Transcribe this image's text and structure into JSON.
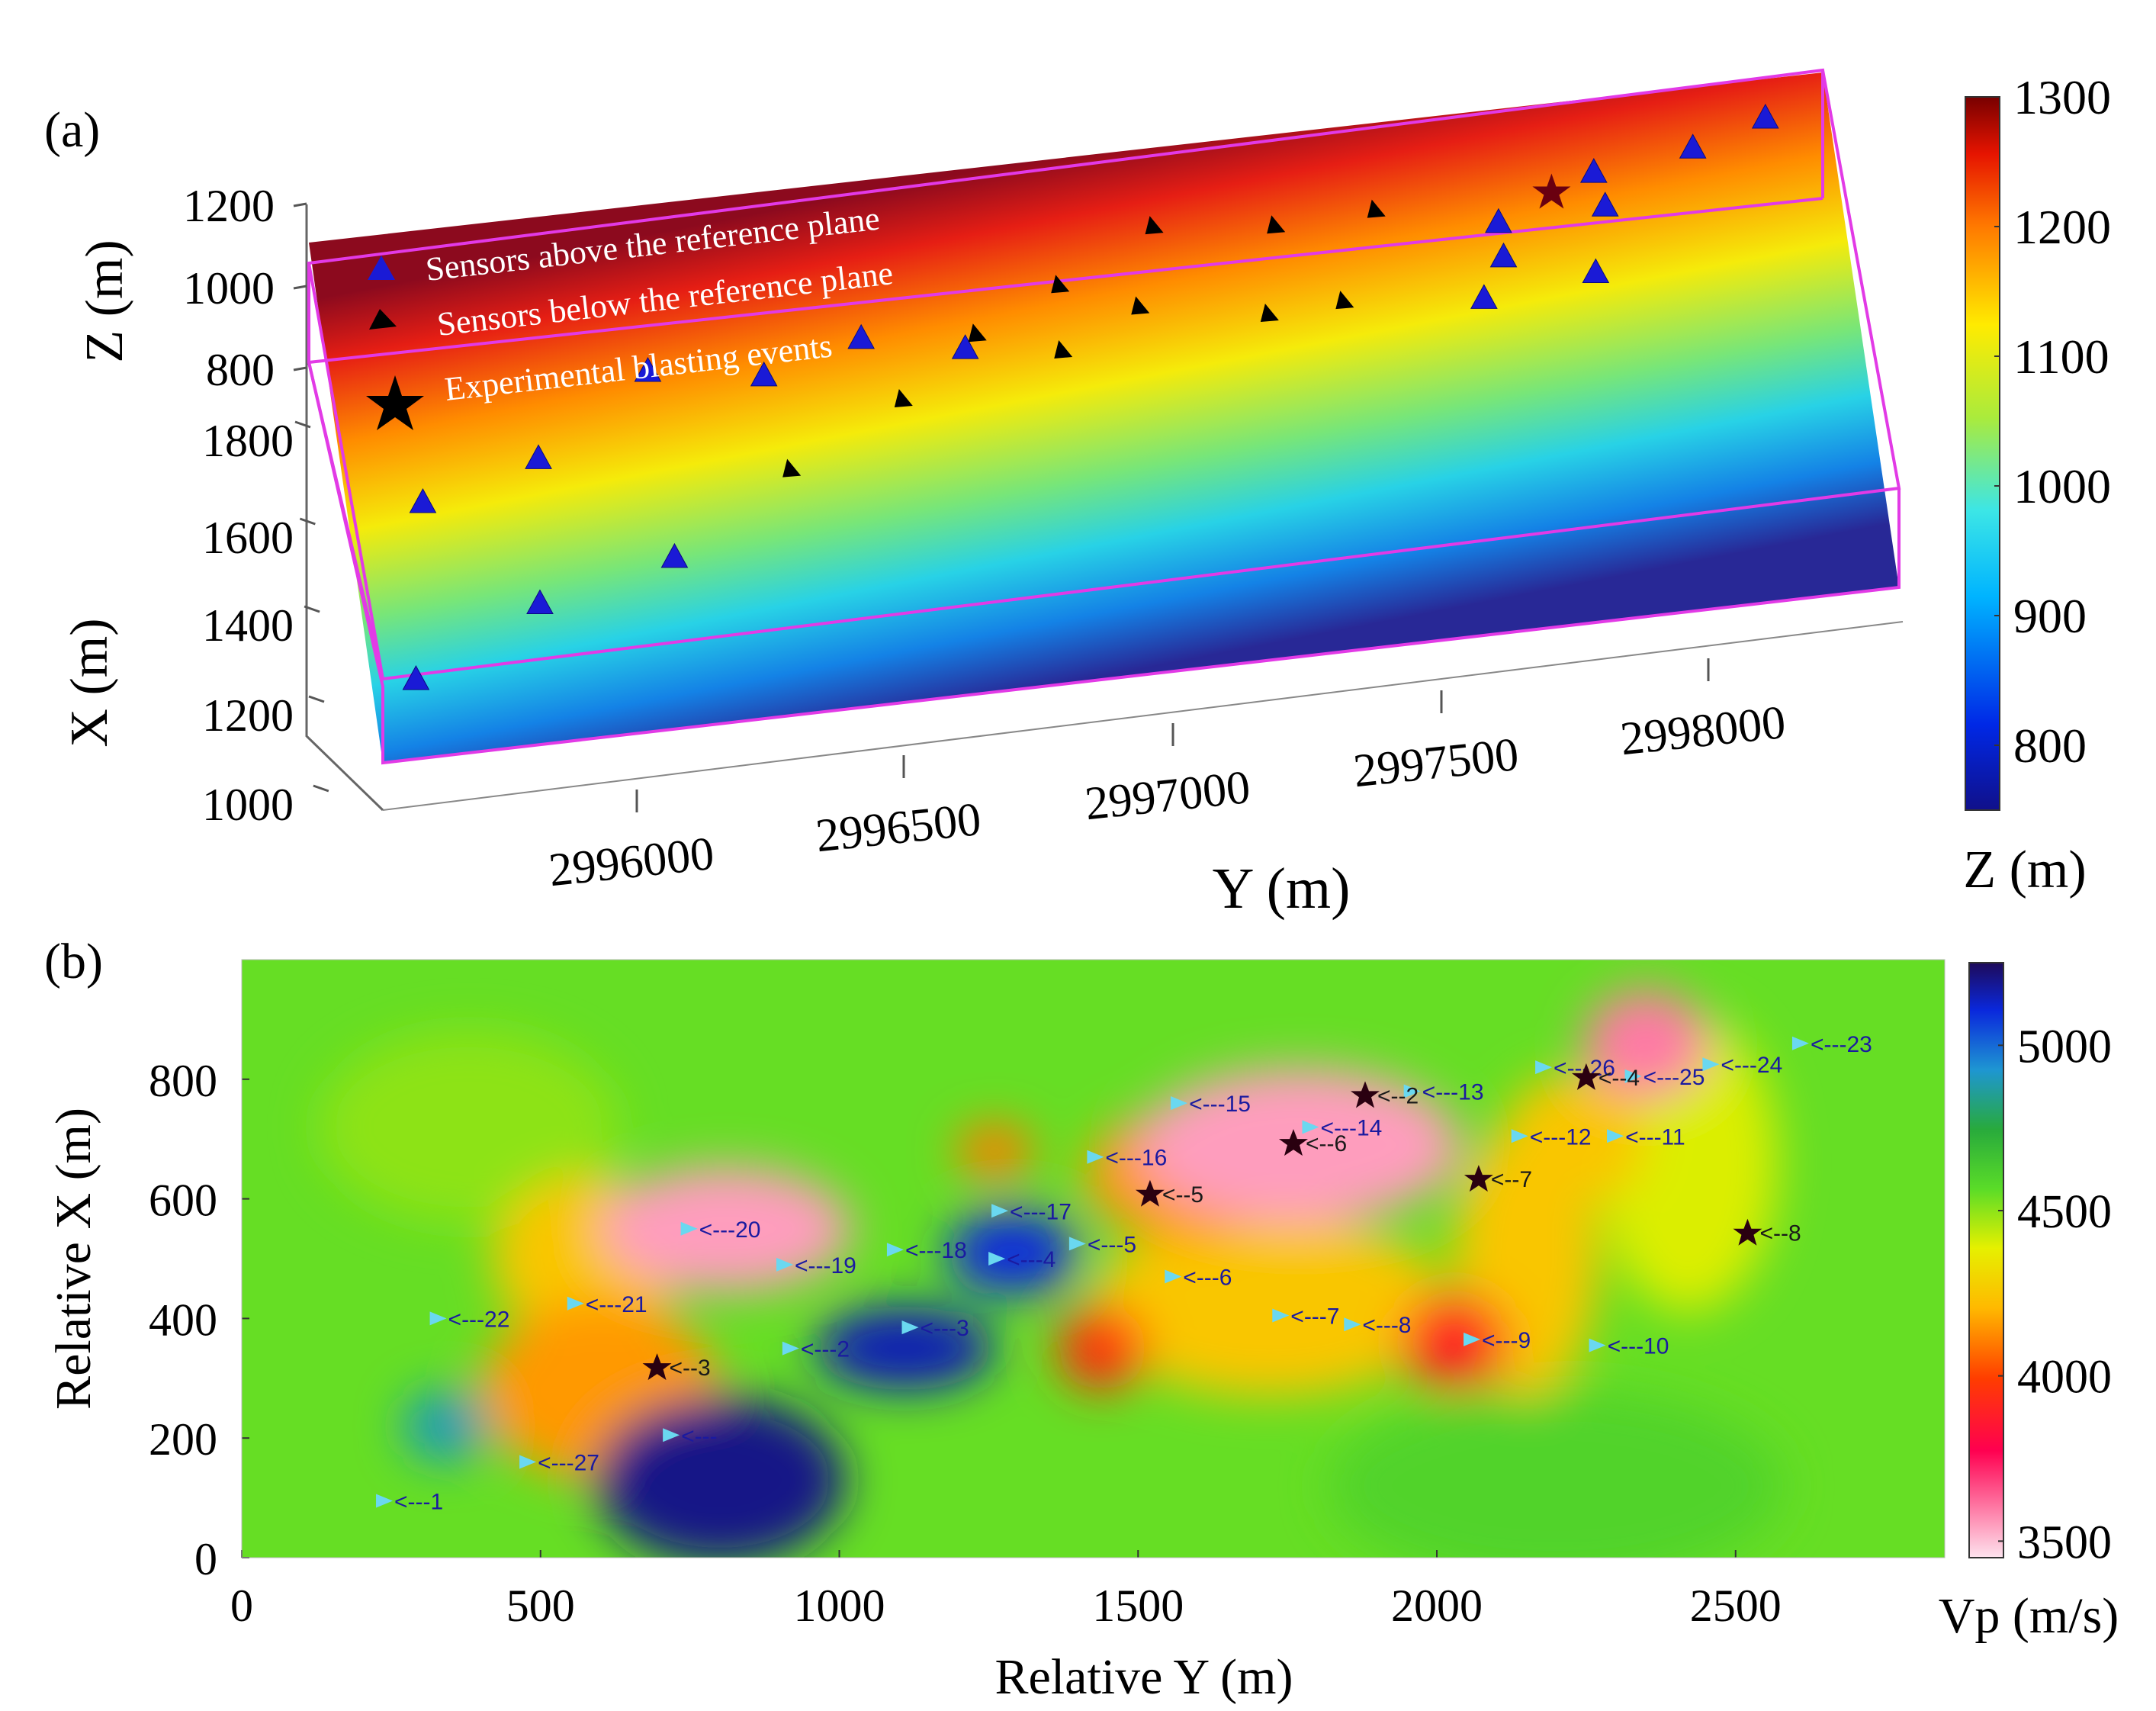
{
  "chart_data": [
    {
      "panel_label": "(a)",
      "type": "scatter",
      "subtype": "3d-surface-with-markers",
      "title": "",
      "axes": {
        "z": {
          "label": "Z (m)",
          "ticks": [
            "800",
            "1000",
            "1200"
          ]
        },
        "x": {
          "label": "X (m)",
          "ticks": [
            "1000",
            "1200",
            "1400",
            "1600",
            "1800"
          ]
        },
        "y": {
          "label": "Y (m)",
          "ticks": [
            "2996000",
            "2996500",
            "2997000",
            "2997500",
            "2998000"
          ]
        }
      },
      "colorbar": {
        "label": "Z (m)",
        "ticks": [
          "800",
          "900",
          "1000",
          "1100",
          "1200",
          "1300"
        ],
        "range": [
          750,
          1300
        ]
      },
      "legend": {
        "position": "top-left",
        "entries": [
          {
            "label": "Sensors above the reference plane",
            "marker": "triangle",
            "color": "#1a1ad6"
          },
          {
            "label": "Sensors below the reference plane",
            "marker": "black-triangle",
            "color": "#000000"
          },
          {
            "label": "Experimental blasting events",
            "marker": "star",
            "color": "#000000"
          }
        ]
      },
      "sensors_above_yx": [
        [
          2995770,
          1180
        ],
        [
          2995820,
          1580
        ],
        [
          2996010,
          1650
        ],
        [
          2995980,
          1320
        ],
        [
          2996200,
          1820
        ],
        [
          2996200,
          1390
        ],
        [
          2996380,
          1780
        ],
        [
          2996540,
          1840
        ],
        [
          2996700,
          1790
        ],
        [
          2997560,
          1940
        ],
        [
          2997720,
          2030
        ],
        [
          2997520,
          1770
        ],
        [
          2997700,
          1800
        ],
        [
          2997880,
          2060
        ],
        [
          2998000,
          2110
        ],
        [
          2997560,
          1860
        ],
        [
          2997730,
          1950
        ]
      ],
      "sensors_below_yx": [
        [
          2996400,
          1560
        ],
        [
          2996590,
          1690
        ],
        [
          2996720,
          1820
        ],
        [
          2996850,
          1760
        ],
        [
          2996860,
          1910
        ],
        [
          2996980,
          1840
        ],
        [
          2997180,
          1790
        ],
        [
          2997300,
          1800
        ],
        [
          2997020,
          2020
        ],
        [
          2997210,
          1990
        ],
        [
          2997370,
          2000
        ]
      ],
      "blasting_events_yx": [
        [
          2997650,
          2000
        ]
      ]
    },
    {
      "panel_label": "(b)",
      "type": "heatmap",
      "title": "",
      "xlabel": "Relative Y (m)",
      "ylabel": "Relative X (m)",
      "xlim": [
        0,
        2850
      ],
      "ylim": [
        0,
        1000
      ],
      "xticks": [
        "0",
        "500",
        "1000",
        "1500",
        "2000",
        "2500"
      ],
      "yticks": [
        "0",
        "200",
        "400",
        "600",
        "800"
      ],
      "colorbar": {
        "label": "Vp (m/s)",
        "ticks": [
          "3500",
          "4000",
          "4500",
          "5000"
        ],
        "range": [
          3450,
          5250
        ]
      },
      "background_vp": 4550,
      "anomalies": [
        {
          "x": 810,
          "y": 550,
          "rx": 210,
          "ry": 105,
          "vp": 3550
        },
        {
          "x": 1770,
          "y": 690,
          "rx": 270,
          "ry": 130,
          "vp": 3550
        },
        {
          "x": 2350,
          "y": 860,
          "rx": 105,
          "ry": 90,
          "vp": 3600
        },
        {
          "x": 2030,
          "y": 360,
          "rx": 90,
          "ry": 80,
          "vp": 3900
        },
        {
          "x": 1440,
          "y": 350,
          "rx": 75,
          "ry": 70,
          "vp": 3950
        },
        {
          "x": 1260,
          "y": 680,
          "rx": 65,
          "ry": 45,
          "vp": 4100
        },
        {
          "x": 800,
          "y": 130,
          "rx": 210,
          "ry": 140,
          "vp": 5200
        },
        {
          "x": 1110,
          "y": 350,
          "rx": 150,
          "ry": 70,
          "vp": 5150
        },
        {
          "x": 1290,
          "y": 510,
          "rx": 110,
          "ry": 70,
          "vp": 5100
        },
        {
          "x": 340,
          "y": 220,
          "rx": 70,
          "ry": 60,
          "vp": 4900
        },
        {
          "x": 600,
          "y": 280,
          "rx": 200,
          "ry": 150,
          "vp": 4150
        },
        {
          "x": 580,
          "y": 500,
          "rx": 160,
          "ry": 140,
          "vp": 4250
        },
        {
          "x": 1720,
          "y": 420,
          "rx": 300,
          "ry": 150,
          "vp": 4250
        },
        {
          "x": 2150,
          "y": 500,
          "rx": 120,
          "ry": 230,
          "vp": 4250
        },
        {
          "x": 1580,
          "y": 640,
          "rx": 170,
          "ry": 110,
          "vp": 4150
        },
        {
          "x": 2230,
          "y": 700,
          "rx": 120,
          "ry": 110,
          "vp": 4250
        },
        {
          "x": 2420,
          "y": 660,
          "rx": 150,
          "ry": 250,
          "vp": 4400
        },
        {
          "x": 2200,
          "y": 120,
          "rx": 380,
          "ry": 160,
          "vp": 4600
        },
        {
          "x": 380,
          "y": 720,
          "rx": 250,
          "ry": 160,
          "vp": 4500
        }
      ],
      "sensors": [
        {
          "label": "<---1",
          "x": 240,
          "y": 95
        },
        {
          "label": "<---27",
          "x": 480,
          "y": 160
        },
        {
          "label": "<---22",
          "x": 330,
          "y": 400
        },
        {
          "label": "<---21",
          "x": 560,
          "y": 425
        },
        {
          "label": "<---20",
          "x": 750,
          "y": 550
        },
        {
          "label": "<---19",
          "x": 910,
          "y": 490
        },
        {
          "label": "<---18",
          "x": 1095,
          "y": 515
        },
        {
          "label": "<---17",
          "x": 1270,
          "y": 580
        },
        {
          "label": "<---16",
          "x": 1430,
          "y": 670
        },
        {
          "label": "<---15",
          "x": 1570,
          "y": 760
        },
        {
          "label": "<---14",
          "x": 1790,
          "y": 720
        },
        {
          "label": "<---13",
          "x": 1960,
          "y": 780
        },
        {
          "label": "<---12",
          "x": 2140,
          "y": 705
        },
        {
          "label": "<---11",
          "x": 2300,
          "y": 705
        },
        {
          "label": "<---26",
          "x": 2180,
          "y": 820
        },
        {
          "label": "<---25",
          "x": 2330,
          "y": 805
        },
        {
          "label": "<---24",
          "x": 2460,
          "y": 825
        },
        {
          "label": "<---23",
          "x": 2610,
          "y": 860
        },
        {
          "label": "<---10",
          "x": 2270,
          "y": 355
        },
        {
          "label": "<---9",
          "x": 2060,
          "y": 365
        },
        {
          "label": "<---8",
          "x": 1860,
          "y": 390
        },
        {
          "label": "<---7",
          "x": 1740,
          "y": 405
        },
        {
          "label": "<---6",
          "x": 1560,
          "y": 470
        },
        {
          "label": "<---5",
          "x": 1400,
          "y": 525
        },
        {
          "label": "<---4",
          "x": 1265,
          "y": 500
        },
        {
          "label": "<---3",
          "x": 1120,
          "y": 385
        },
        {
          "label": "<---2",
          "x": 920,
          "y": 350
        },
        {
          "label": "<---",
          "x": 720,
          "y": 205
        }
      ],
      "events": [
        {
          "label": "<--2",
          "x": 1880,
          "y": 775
        },
        {
          "label": "<--3",
          "x": 695,
          "y": 320
        },
        {
          "label": "<--4",
          "x": 2250,
          "y": 805
        },
        {
          "label": "<--5",
          "x": 1520,
          "y": 610
        },
        {
          "label": "<--6",
          "x": 1760,
          "y": 695
        },
        {
          "label": "<--7",
          "x": 2070,
          "y": 635
        },
        {
          "label": "<--8",
          "x": 2520,
          "y": 545
        }
      ]
    }
  ]
}
